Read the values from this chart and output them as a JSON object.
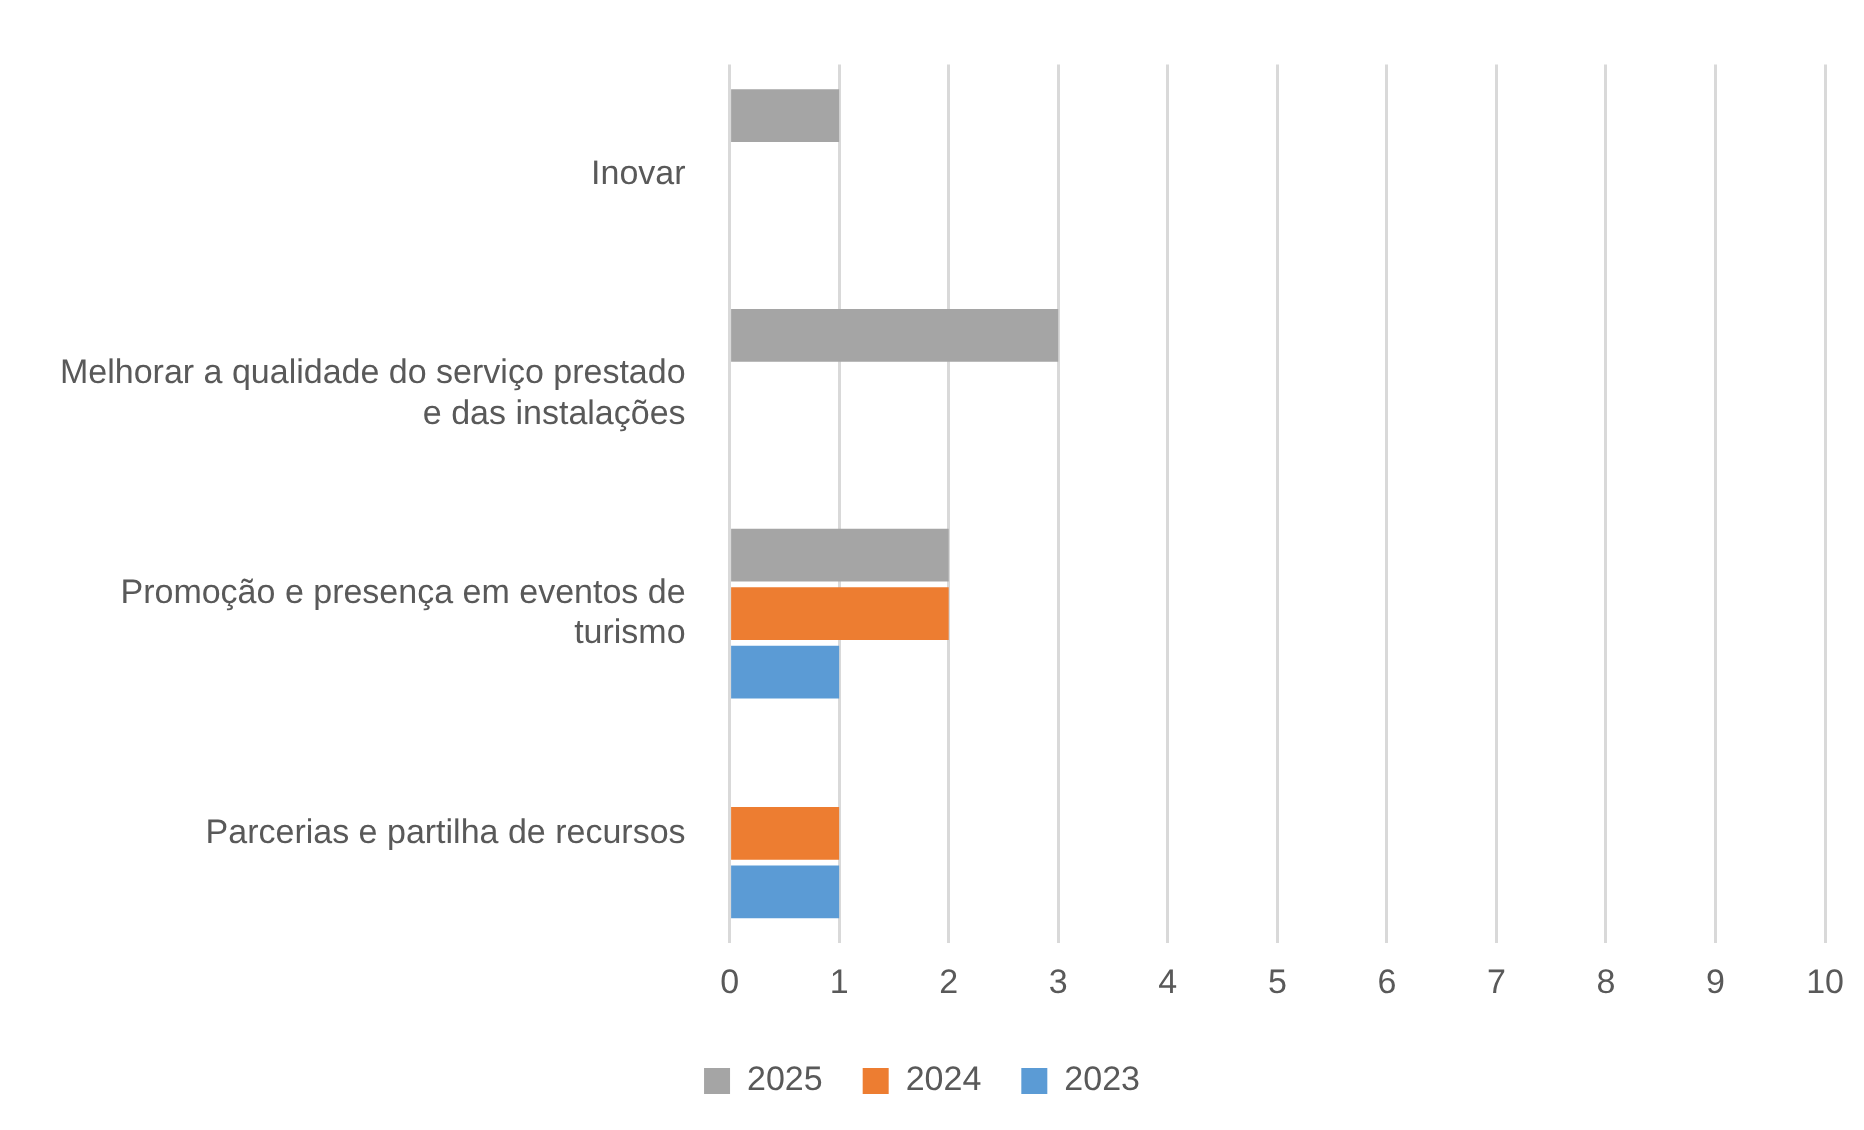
{
  "chart_data": {
    "type": "bar",
    "orientation": "horizontal",
    "categories": [
      "Inovar",
      "Melhorar a qualidade do serviço prestado e das instalações",
      "Promoção e presença em eventos de turismo",
      "Parcerias e partilha de recursos"
    ],
    "series": [
      {
        "name": "2025",
        "color": "#a5a5a5",
        "values": [
          1,
          3,
          2,
          null
        ]
      },
      {
        "name": "2024",
        "color": "#ed7d31",
        "values": [
          null,
          null,
          2,
          1
        ]
      },
      {
        "name": "2023",
        "color": "#5b9bd5",
        "values": [
          null,
          null,
          1,
          1
        ]
      }
    ],
    "xlim": [
      0,
      10
    ],
    "xticks": [
      0,
      1,
      2,
      3,
      4,
      5,
      6,
      7,
      8,
      9,
      10
    ],
    "grid": "x",
    "legend": "bottom"
  }
}
